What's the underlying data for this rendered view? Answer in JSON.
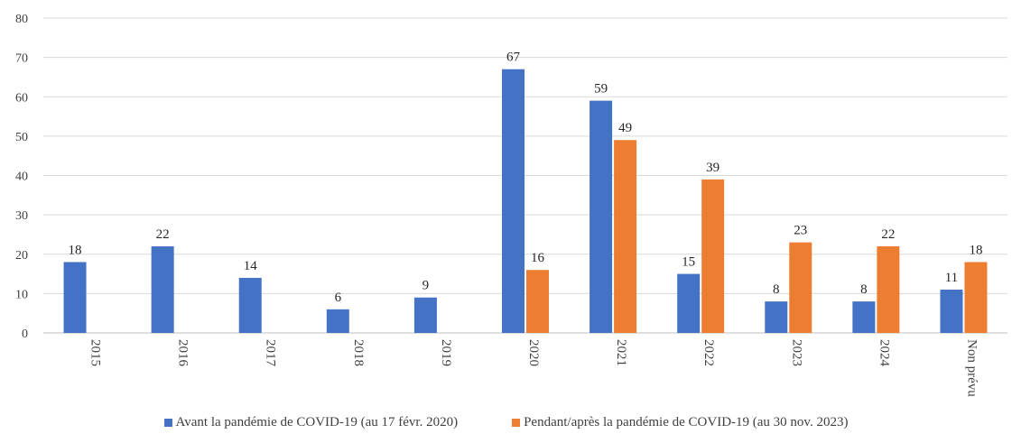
{
  "chart_data": {
    "type": "bar",
    "categories": [
      "2015",
      "2016",
      "2017",
      "2018",
      "2019",
      "2020",
      "2021",
      "2022",
      "2023",
      "2024",
      "Non prévu"
    ],
    "series": [
      {
        "name": "Avant la pandémie de COVID-19 (au 17 févr. 2020)",
        "color": "#4472C4",
        "values": [
          18,
          22,
          14,
          6,
          9,
          67,
          59,
          15,
          8,
          8,
          11
        ]
      },
      {
        "name": "Pendant/après la pandémie de COVID-19 (au 30 nov. 2023)",
        "color": "#ED7D31",
        "values": [
          null,
          null,
          null,
          null,
          null,
          16,
          49,
          39,
          23,
          22,
          18
        ]
      }
    ],
    "yticks": [
      "0",
      "10",
      "20",
      "30",
      "40",
      "50",
      "60",
      "70",
      "80"
    ],
    "ylim": [
      0,
      80
    ],
    "grid": true,
    "legend_position": "bottom"
  }
}
